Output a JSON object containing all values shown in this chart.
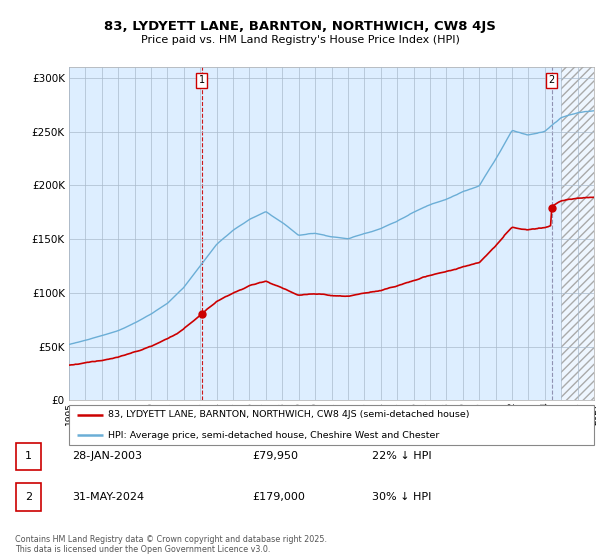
{
  "title": "83, LYDYETT LANE, BARNTON, NORTHWICH, CW8 4JS",
  "subtitle": "Price paid vs. HM Land Registry's House Price Index (HPI)",
  "legend_label_red": "83, LYDYETT LANE, BARNTON, NORTHWICH, CW8 4JS (semi-detached house)",
  "legend_label_blue": "HPI: Average price, semi-detached house, Cheshire West and Chester",
  "transaction1_date": "28-JAN-2003",
  "transaction1_price": "£79,950",
  "transaction1_hpi": "22% ↓ HPI",
  "transaction1_year": 2003.08,
  "transaction1_value": 79950,
  "transaction2_date": "31-MAY-2024",
  "transaction2_price": "£179,000",
  "transaction2_hpi": "30% ↓ HPI",
  "transaction2_year": 2024.42,
  "transaction2_value": 179000,
  "footer": "Contains HM Land Registry data © Crown copyright and database right 2025.\nThis data is licensed under the Open Government Licence v3.0.",
  "ylim": [
    0,
    310000
  ],
  "yticks": [
    0,
    50000,
    100000,
    150000,
    200000,
    250000,
    300000
  ],
  "hpi_color": "#6baed6",
  "price_color": "#cc0000",
  "background_color": "#ffffff",
  "plot_bg_color": "#ddeeff",
  "grid_color": "#aabbcc",
  "xmin": 1995,
  "xmax": 2027,
  "hatch_start": 2025
}
